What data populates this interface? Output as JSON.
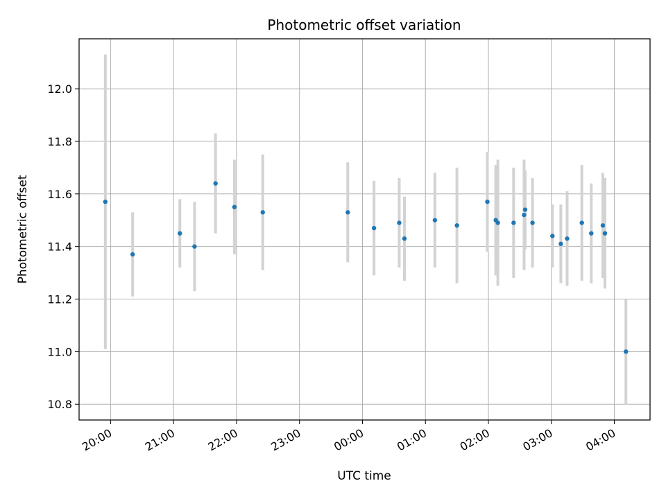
{
  "chart_data": {
    "type": "scatter",
    "title": "Photometric offset variation",
    "xlabel": "UTC time",
    "ylabel": "Photometric offset",
    "grid": true,
    "x_reference_date_note": "",
    "x_ticks": [
      "20:00",
      "21:00",
      "22:00",
      "23:00",
      "00:00",
      "01:00",
      "02:00",
      "03:00",
      "04:00"
    ],
    "y_ticks": [
      "10.8",
      "11.0",
      "11.2",
      "11.4",
      "11.6",
      "11.8",
      "12.0"
    ],
    "xlim": [
      "19:30",
      "04:34"
    ],
    "ylim": [
      10.74,
      12.19
    ],
    "series": [
      {
        "marker_color": "#1f77b4",
        "errorbar_color": "#d3d3d3",
        "points": [
          {
            "x": "19:55",
            "y": 11.57,
            "yerr": 0.56
          },
          {
            "x": "20:21",
            "y": 11.37,
            "yerr": 0.16
          },
          {
            "x": "21:06",
            "y": 11.45,
            "yerr": 0.13
          },
          {
            "x": "21:20",
            "y": 11.4,
            "yerr": 0.17
          },
          {
            "x": "21:40",
            "y": 11.64,
            "yerr": 0.19
          },
          {
            "x": "21:58",
            "y": 11.55,
            "yerr": 0.18
          },
          {
            "x": "22:25",
            "y": 11.53,
            "yerr": 0.22
          },
          {
            "x": "23:46",
            "y": 11.53,
            "yerr": 0.19
          },
          {
            "x": "00:11",
            "y": 11.47,
            "yerr": 0.18
          },
          {
            "x": "00:35",
            "y": 11.49,
            "yerr": 0.17
          },
          {
            "x": "00:40",
            "y": 11.43,
            "yerr": 0.16
          },
          {
            "x": "01:09",
            "y": 11.5,
            "yerr": 0.18
          },
          {
            "x": "01:30",
            "y": 11.48,
            "yerr": 0.22
          },
          {
            "x": "01:59",
            "y": 11.57,
            "yerr": 0.19
          },
          {
            "x": "02:07",
            "y": 11.5,
            "yerr": 0.21
          },
          {
            "x": "02:09",
            "y": 11.49,
            "yerr": 0.24
          },
          {
            "x": "02:24",
            "y": 11.49,
            "yerr": 0.21
          },
          {
            "x": "02:34",
            "y": 11.52,
            "yerr": 0.21
          },
          {
            "x": "02:35",
            "y": 11.54,
            "yerr": 0.15
          },
          {
            "x": "02:42",
            "y": 11.49,
            "yerr": 0.17
          },
          {
            "x": "03:01",
            "y": 11.44,
            "yerr": 0.12
          },
          {
            "x": "03:09",
            "y": 11.41,
            "yerr": 0.15
          },
          {
            "x": "03:15",
            "y": 11.43,
            "yerr": 0.18
          },
          {
            "x": "03:29",
            "y": 11.49,
            "yerr": 0.22
          },
          {
            "x": "03:38",
            "y": 11.45,
            "yerr": 0.19
          },
          {
            "x": "03:49",
            "y": 11.48,
            "yerr": 0.2
          },
          {
            "x": "03:51",
            "y": 11.45,
            "yerr": 0.21
          },
          {
            "x": "04:11",
            "y": 11.0,
            "yerr": 0.2
          }
        ]
      }
    ]
  }
}
